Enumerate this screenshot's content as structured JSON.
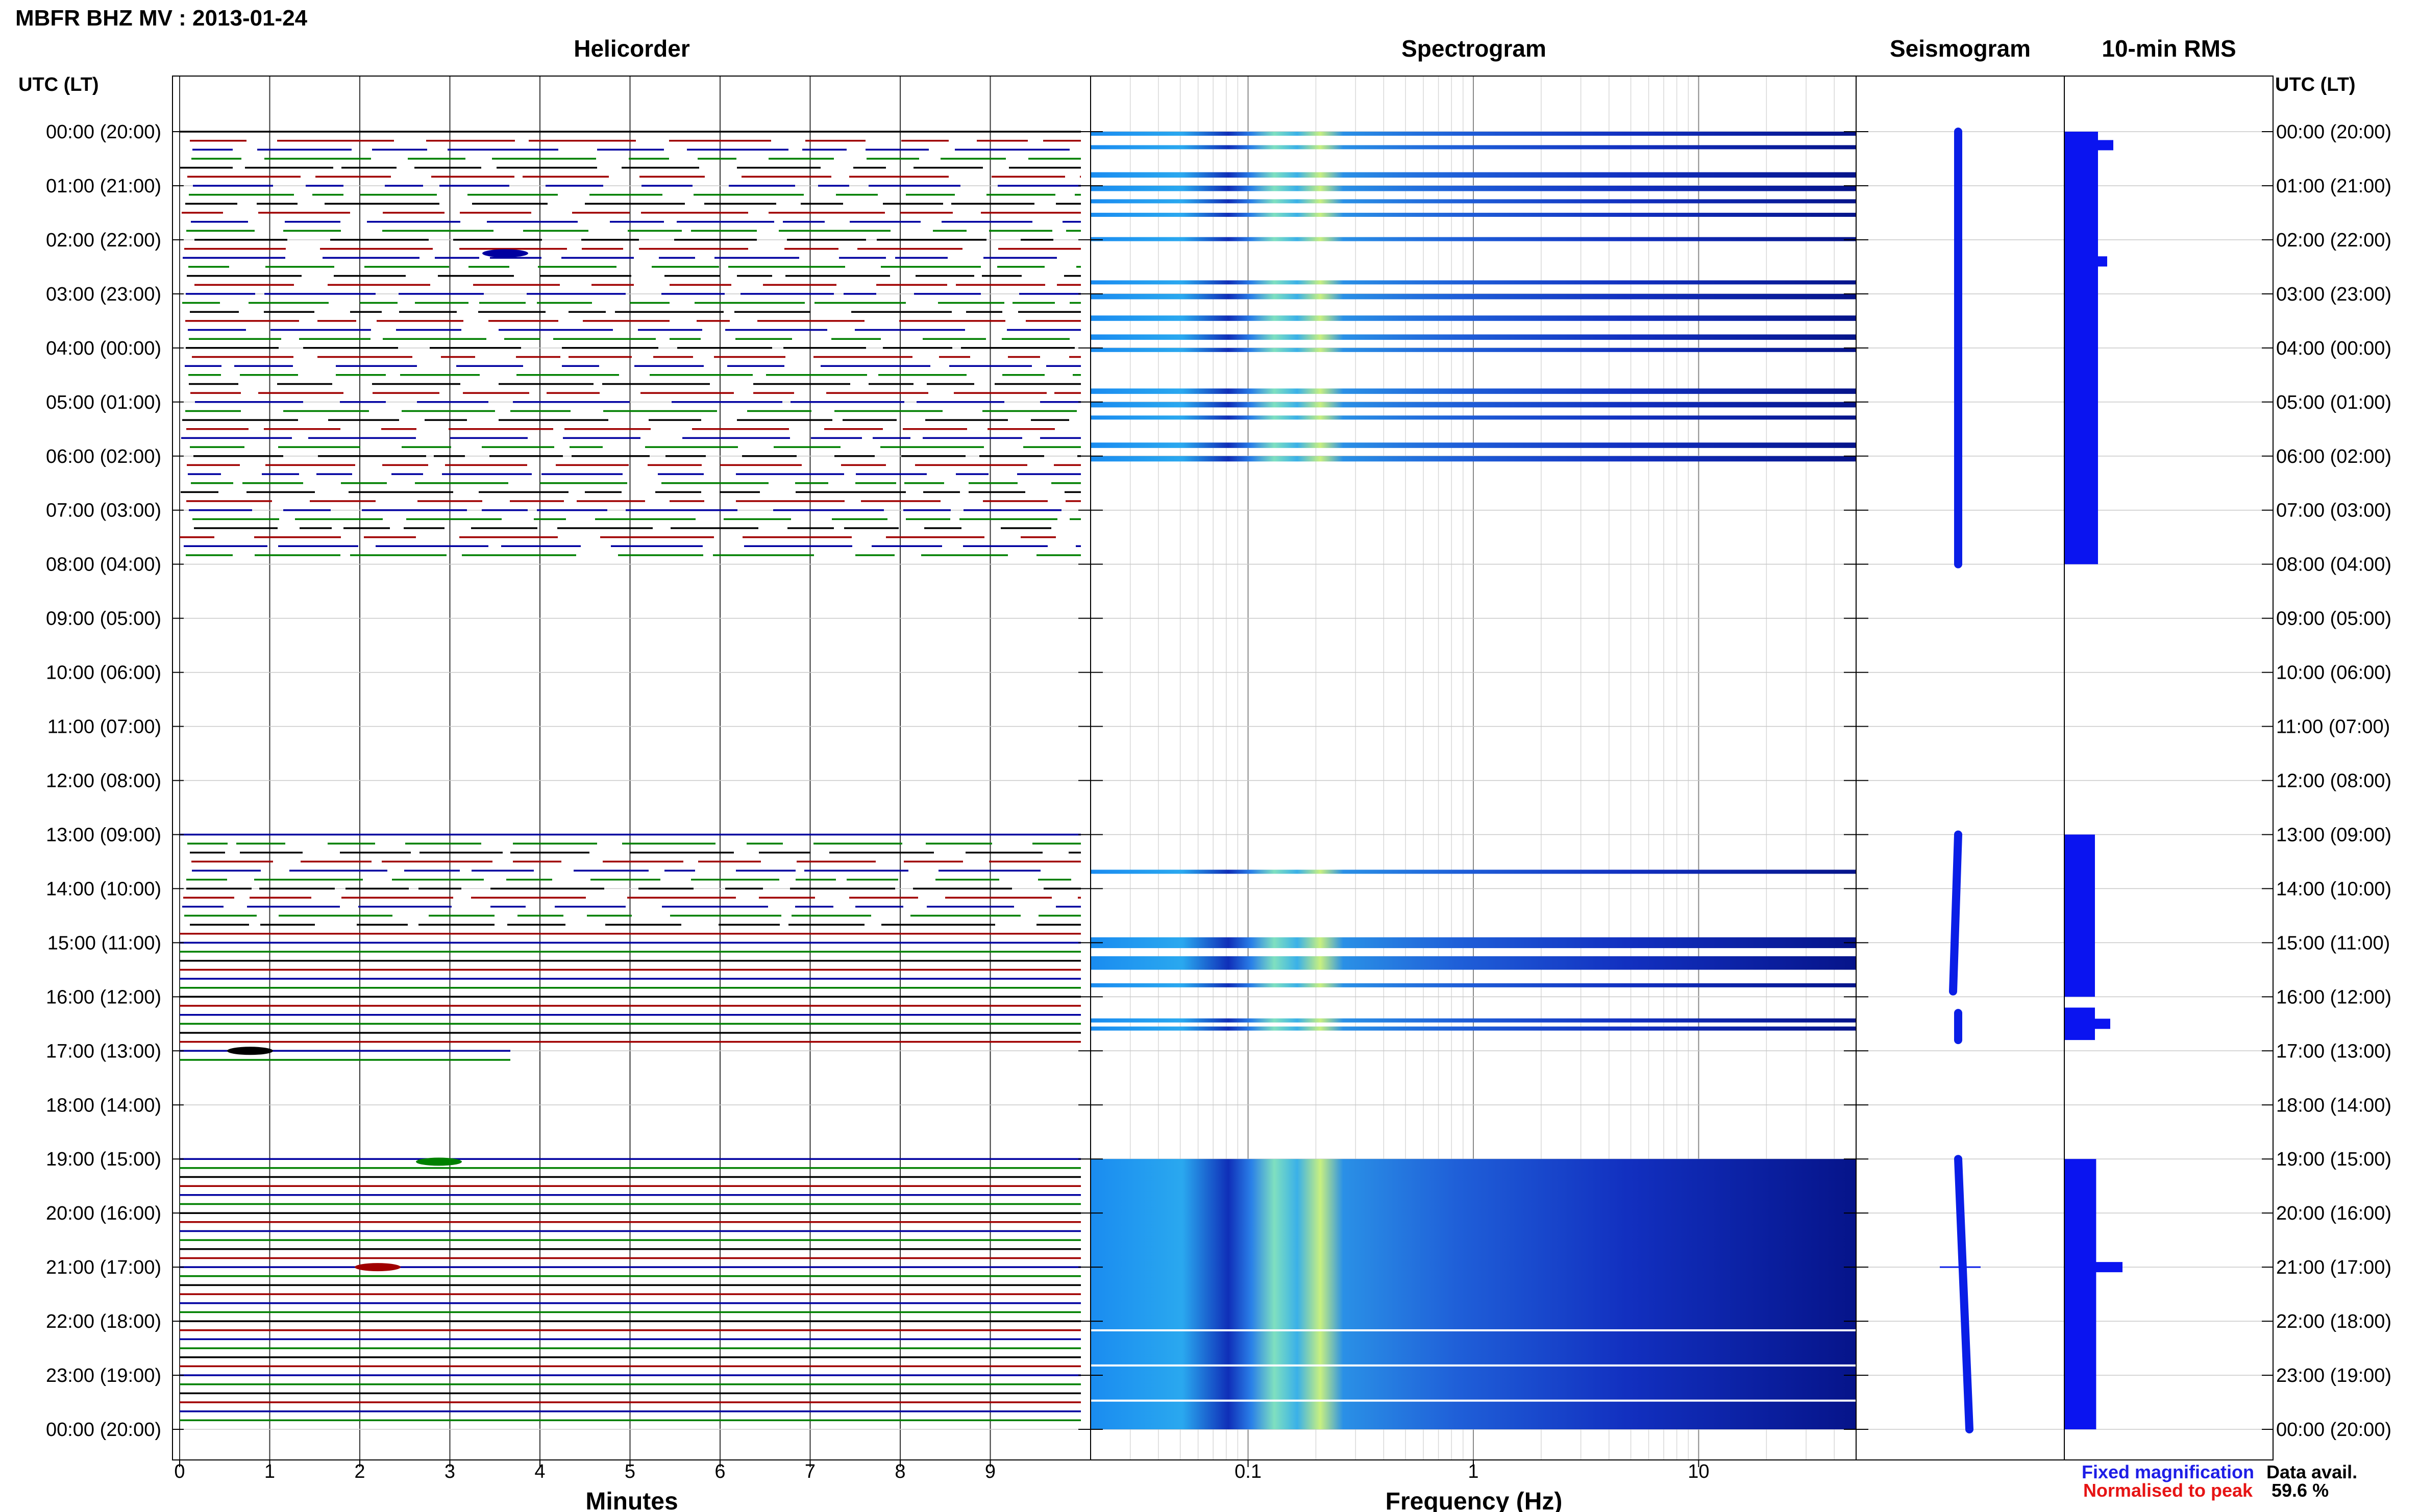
{
  "header": {
    "title": "MBFR BHZ MV : 2013-01-24",
    "utc_label_left": "UTC (LT)",
    "utc_label_right": "UTC (LT)"
  },
  "panels": {
    "helicorder": "Helicorder",
    "spectrogram": "Spectrogram",
    "seismogram": "Seismogram",
    "rms": "10-min RMS"
  },
  "axes": {
    "minutes_label": "Minutes",
    "frequency_label": "Frequency (Hz)"
  },
  "legend": {
    "fixed": "Fixed magnification",
    "normalised": "Normalised to peak",
    "data_avail_label": "Data avail.",
    "data_avail_value": "59.6 %"
  },
  "colors": {
    "trace_cycle": [
      "#000000",
      "#a00000",
      "#0000a0",
      "#008000"
    ],
    "seismogram": "#0a1ee6",
    "rms": "#0a14f0",
    "fixed": "#1e1ee6",
    "normalised": "#e61414"
  },
  "chart_data": {
    "type": "heatmap",
    "time_labels": [
      "00:00 (20:00)",
      "01:00 (21:00)",
      "02:00 (22:00)",
      "03:00 (23:00)",
      "04:00 (00:00)",
      "05:00 (01:00)",
      "06:00 (02:00)",
      "07:00 (03:00)",
      "08:00 (04:00)",
      "09:00 (05:00)",
      "10:00 (06:00)",
      "11:00 (07:00)",
      "12:00 (08:00)",
      "13:00 (09:00)",
      "14:00 (10:00)",
      "15:00 (11:00)",
      "16:00 (12:00)",
      "17:00 (13:00)",
      "18:00 (14:00)",
      "19:00 (15:00)",
      "20:00 (16:00)",
      "21:00 (17:00)",
      "22:00 (18:00)",
      "23:00 (19:00)",
      "00:00 (20:00)"
    ],
    "minute_ticks": [
      "0",
      "1",
      "2",
      "3",
      "4",
      "5",
      "6",
      "7",
      "8",
      "9"
    ],
    "freq_ticks": [
      {
        "value": 0.1,
        "label": "0.1"
      },
      {
        "value": 1,
        "label": "1"
      },
      {
        "value": 10,
        "label": "10"
      }
    ],
    "freq_range": [
      0.02,
      50
    ],
    "freq_scale": "log",
    "data_segments_hours": [
      [
        0,
        8
      ],
      [
        13,
        17.2
      ],
      [
        19,
        24
      ]
    ],
    "spectrogram_rows_hours": [
      [
        0.0,
        0.05
      ],
      [
        0.25,
        0.3
      ],
      [
        0.75,
        0.85
      ],
      [
        1.0,
        1.1
      ],
      [
        1.25,
        1.3
      ],
      [
        1.5,
        1.55
      ],
      [
        1.95,
        2.0
      ],
      [
        2.75,
        2.8
      ],
      [
        3.0,
        3.1
      ],
      [
        3.4,
        3.5
      ],
      [
        3.75,
        3.85
      ],
      [
        4.0,
        4.05
      ],
      [
        4.75,
        4.85
      ],
      [
        5.0,
        5.1
      ],
      [
        5.25,
        5.3
      ],
      [
        5.75,
        5.85
      ],
      [
        6.0,
        6.1
      ],
      [
        13.65,
        13.7
      ],
      [
        14.9,
        15.1
      ],
      [
        15.25,
        15.5
      ],
      [
        15.75,
        15.8
      ],
      [
        16.4,
        16.45
      ],
      [
        16.55,
        16.6
      ],
      [
        19.0,
        24.0
      ]
    ],
    "rms_segments_hours": [
      [
        0.0,
        8.0,
        0.55
      ],
      [
        13.0,
        16.0,
        0.5
      ],
      [
        16.2,
        16.8,
        0.5
      ],
      [
        19.0,
        24.0,
        0.52
      ]
    ],
    "rms_spikes_hours": [
      [
        0.25,
        0.8
      ],
      [
        2.4,
        0.7
      ],
      [
        16.5,
        0.75
      ],
      [
        21.0,
        0.95
      ]
    ]
  }
}
